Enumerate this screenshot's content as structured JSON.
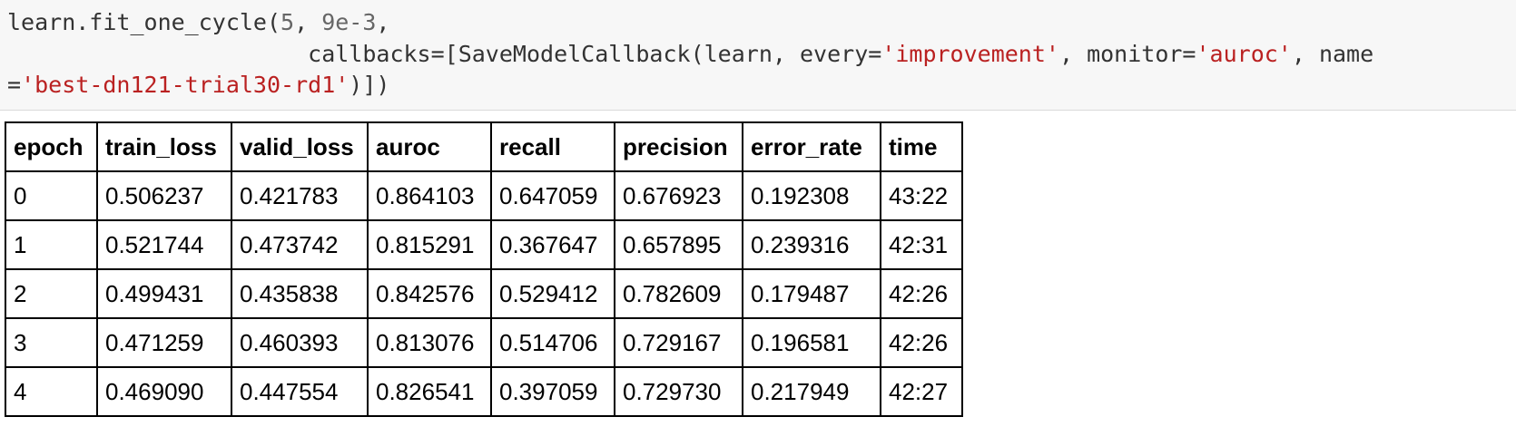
{
  "code": {
    "line1_pre": "learn.fit_one_cycle(",
    "arg_epochs": "5",
    "sep1": ", ",
    "arg_lr": "9e-3",
    "line1_post": ",",
    "line2_indent": "                      ",
    "line2_pre": "callbacks=[SaveModelCallback(learn, every=",
    "every_value": "'improvement'",
    "line2_mid": ", monitor=",
    "monitor_value": "'auroc'",
    "line2_post": ", name",
    "line3_pre": "=",
    "name_value": "'best-dn121-trial30-rd1'",
    "line3_post": ")])"
  },
  "table": {
    "columns": [
      "epoch",
      "train_loss",
      "valid_loss",
      "auroc",
      "recall",
      "precision",
      "error_rate",
      "time"
    ],
    "rows": [
      [
        "0",
        "0.506237",
        "0.421783",
        "0.864103",
        "0.647059",
        "0.676923",
        "0.192308",
        "43:22"
      ],
      [
        "1",
        "0.521744",
        "0.473742",
        "0.815291",
        "0.367647",
        "0.657895",
        "0.239316",
        "42:31"
      ],
      [
        "2",
        "0.499431",
        "0.435838",
        "0.842576",
        "0.529412",
        "0.782609",
        "0.179487",
        "42:26"
      ],
      [
        "3",
        "0.471259",
        "0.460393",
        "0.813076",
        "0.514706",
        "0.729167",
        "0.196581",
        "42:26"
      ],
      [
        "4",
        "0.469090",
        "0.447554",
        "0.826541",
        "0.397059",
        "0.729730",
        "0.217949",
        "42:27"
      ]
    ]
  },
  "colors": {
    "code_background": "#f7f7f7",
    "code_text": "#333333",
    "string_literal": "#ba2121",
    "number_literal": "#666666",
    "table_border": "#000000"
  }
}
